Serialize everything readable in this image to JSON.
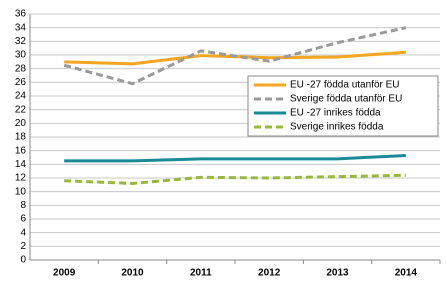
{
  "chart_data": {
    "type": "line",
    "categories": [
      "2009",
      "2010",
      "2011",
      "2012",
      "2013",
      "2014"
    ],
    "series": [
      {
        "name": "EU -27 födda utanför EU",
        "color": "#f5a623",
        "dashed": false,
        "values": [
          29.0,
          28.7,
          29.9,
          29.6,
          29.7,
          30.4
        ]
      },
      {
        "name": "Sverige födda utanför EU",
        "color": "#9a9a9a",
        "dashed": true,
        "values": [
          28.5,
          25.8,
          30.6,
          29.1,
          31.8,
          34.0
        ]
      },
      {
        "name": "EU -27 inrikes födda",
        "color": "#1a8a96",
        "dashed": false,
        "values": [
          14.5,
          14.5,
          14.8,
          14.8,
          14.8,
          15.3
        ]
      },
      {
        "name": "Sverige inrikes födda",
        "color": "#9ab83c",
        "dashed": true,
        "values": [
          11.6,
          11.2,
          12.1,
          12.0,
          12.2,
          12.4
        ]
      }
    ],
    "ylim": [
      0,
      36
    ],
    "yticks": [
      0,
      2,
      4,
      6,
      8,
      10,
      12,
      14,
      16,
      18,
      20,
      22,
      24,
      26,
      28,
      30,
      32,
      34,
      36
    ],
    "grid": true
  }
}
